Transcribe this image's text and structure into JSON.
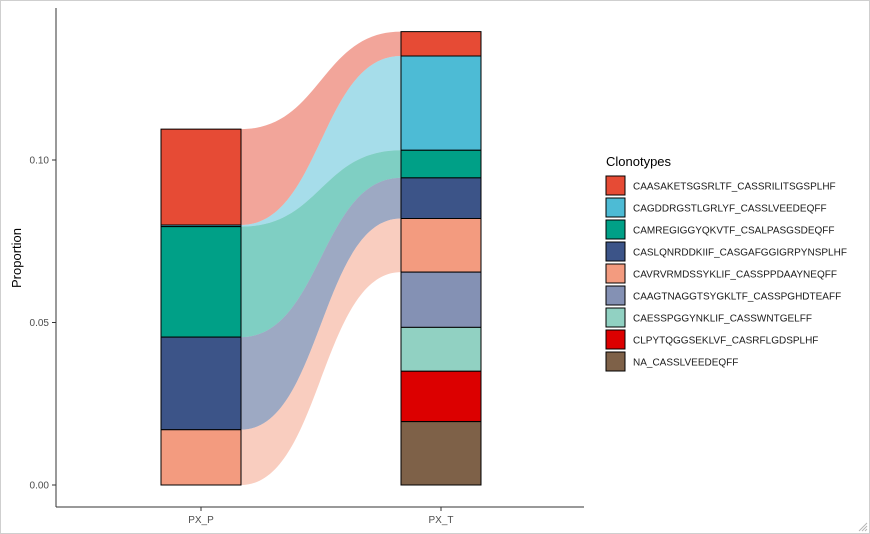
{
  "chart_data": {
    "type": "alluvial-stacked-bar",
    "title": "",
    "xlabel": "",
    "ylabel": "Proportion",
    "ylim": [
      0,
      0.14
    ],
    "y_ticks": [
      0.0,
      0.05,
      0.1
    ],
    "y_tick_labels": [
      "0.00",
      "0.05",
      "0.10"
    ],
    "categories": [
      "PX_P",
      "PX_T"
    ],
    "legend_title": "Clonotypes",
    "legend_position": "right",
    "series": [
      {
        "name": "CAASAKETSGSRLTF_CASSRILITSGSPLHF",
        "color": "#E64B35",
        "values": [
          0.0295,
          0.0075
        ]
      },
      {
        "name": "CAGDDRGSTLGRLYF_CASSLVEEDEQFF",
        "color": "#4DBBD5",
        "values": [
          0.0005,
          0.029
        ]
      },
      {
        "name": "CAMREGIGGYQKVTF_CSALPASGSDEQFF",
        "color": "#00A087",
        "values": [
          0.034,
          0.0085
        ]
      },
      {
        "name": "CASLQNRDDKIIF_CASGAFGGIGRPYNSPLHF",
        "color": "#3C5488",
        "values": [
          0.0285,
          0.0125
        ]
      },
      {
        "name": "CAVRVRMDSSYKLIF_CASSPPDAAYNEQFF",
        "color": "#F39B7F",
        "values": [
          0.017,
          0.0165
        ]
      },
      {
        "name": "CAAGTNAGGTSYGKLTF_CASSPGHDTEAFF",
        "color": "#8491B4",
        "values": [
          0.0,
          0.017
        ]
      },
      {
        "name": "CAESSPGGYNKLIF_CASSWNTGELFF",
        "color": "#91D1C2",
        "values": [
          0.0,
          0.0135
        ]
      },
      {
        "name": "CLPYTQGGSEKLVF_CASRFLGDSPLHF",
        "color": "#DC0000",
        "values": [
          0.0,
          0.0155
        ]
      },
      {
        "name": "NA_CASSLVEEDEQFF",
        "color": "#7E6148",
        "values": [
          0.0,
          0.0195
        ]
      }
    ],
    "flows": [
      {
        "name": "CAASAKETSGSRLTF_CASSRILITSGSPLHF",
        "color": "#E64B35"
      },
      {
        "name": "CAGDDRGSTLGRLYF_CASSLVEEDEQFF",
        "color": "#4DBBD5"
      },
      {
        "name": "CAMREGIGGYQKVTF_CSALPASGSDEQFF",
        "color": "#00A087"
      },
      {
        "name": "CASLQNRDDKIIF_CASGAFGGIGRPYNSPLHF",
        "color": "#3C5488"
      },
      {
        "name": "CAVRVRMDSSYKLIF_CASSPPDAAYNEQFF",
        "color": "#F39B7F"
      }
    ]
  }
}
